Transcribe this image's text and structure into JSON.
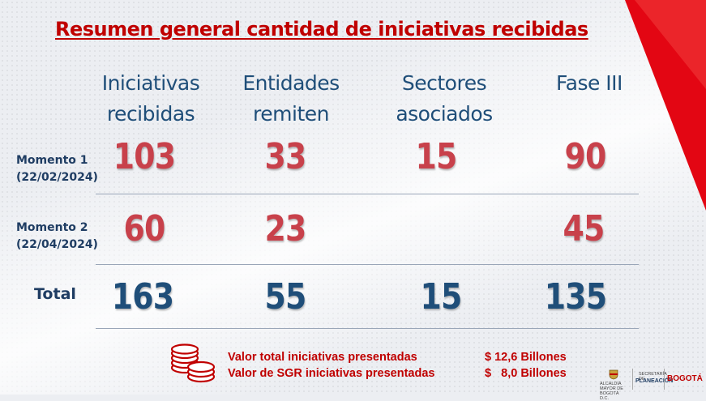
{
  "title": "Resumen general cantidad de iniciativas recibidas",
  "columns": [
    {
      "line1": "Iniciativas",
      "line2": "recibidas"
    },
    {
      "line1": "Entidades",
      "line2": "remiten"
    },
    {
      "line1": "Sectores",
      "line2": "asociados"
    },
    {
      "line1": "Fase III",
      "line2": ""
    }
  ],
  "rows": [
    {
      "label_line1": "Momento 1",
      "label_line2": "(22/02/2024)",
      "values": [
        "103",
        "33",
        "15",
        "90"
      ]
    },
    {
      "label_line1": "Momento 2",
      "label_line2": "(22/04/2024)",
      "values": [
        "60",
        "23",
        "",
        "45"
      ]
    },
    {
      "label_line1": "Total",
      "label_line2": "",
      "values": [
        "163",
        "55",
        "15",
        "135"
      ]
    }
  ],
  "summary": [
    {
      "label": "Valor total iniciativas presentadas",
      "amount": "$ 12,6 Billones"
    },
    {
      "label": "Valor de SGR iniciativas presentadas",
      "amount": "$   8,0 Billones"
    }
  ],
  "logos": {
    "alcaldia": "ALCALDÍA MAYOR DE BOGOTÁ D.C.",
    "secretaria": "SECRETARÍA DE",
    "planeacion": "PLANEACIÓN",
    "bogota": "BOGOTÁ"
  },
  "colors": {
    "accent_red": "#c00000",
    "number_red": "#c8414b",
    "navy": "#1f4e79"
  }
}
